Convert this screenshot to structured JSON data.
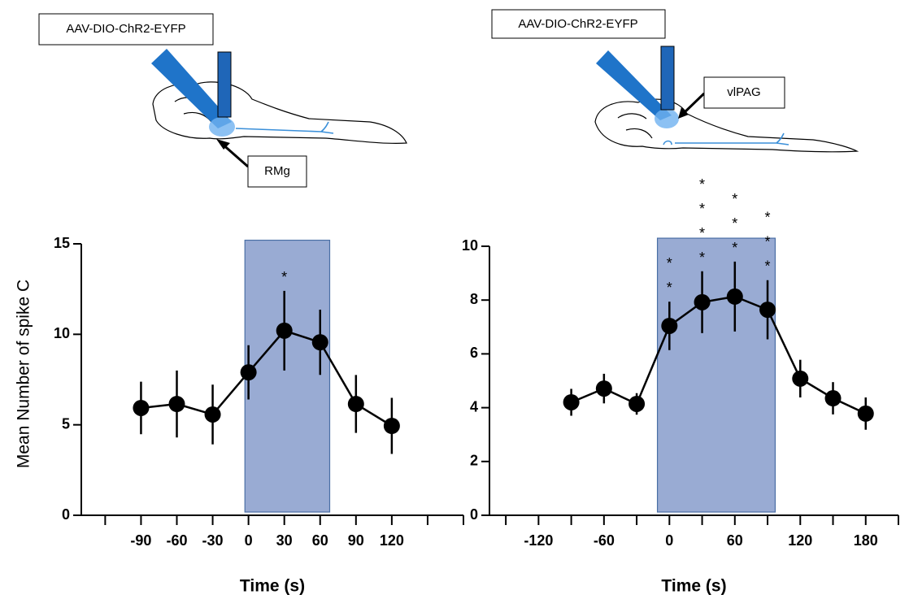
{
  "schematics": [
    {
      "virus": "AAV-DIO-ChR2-EYFP",
      "target": "RMg"
    },
    {
      "virus": "AAV-DIO-ChR2-EYFP",
      "target": "vlPAG"
    }
  ],
  "chart_data": [
    {
      "type": "line",
      "ylabel": "Mean Number of spike C",
      "xlabel": "Time (s)",
      "x": [
        -90,
        -60,
        -30,
        0,
        30,
        60,
        90,
        120
      ],
      "series": [
        {
          "color": "#000000",
          "values": [
            5.93,
            6.15,
            5.57,
            7.9,
            10.2,
            9.56,
            6.15,
            4.94
          ],
          "errors": [
            1.45,
            1.85,
            1.65,
            1.5,
            2.2,
            1.8,
            1.6,
            1.55
          ]
        }
      ],
      "xlim": [
        -140,
        180
      ],
      "ylim": [
        0,
        15
      ],
      "xticks": [
        {
          "value": -120,
          "label": null
        },
        -90,
        -60,
        -30,
        0,
        30,
        60,
        90,
        120,
        {
          "value": 150,
          "label": null
        },
        {
          "value": 180,
          "label": null
        }
      ],
      "yticks": [
        0,
        5,
        10,
        15
      ],
      "highlight": {
        "x": [
          -3,
          68
        ],
        "y": [
          0,
          15.2
        ],
        "color": "#8096c8"
      },
      "annotations": [
        {
          "text": "*",
          "x": 30
        }
      ]
    },
    {
      "type": "line",
      "xlabel": "Time (s)",
      "x": [
        -90,
        -60,
        -30,
        0,
        30,
        60,
        90,
        120,
        150,
        180
      ],
      "series": [
        {
          "color": "#000000",
          "values": [
            4.2,
            4.71,
            4.14,
            7.04,
            7.92,
            8.13,
            7.64,
            5.08,
            4.35,
            3.78
          ],
          "errors": [
            0.5,
            0.55,
            0.4,
            0.9,
            1.15,
            1.3,
            1.1,
            0.7,
            0.6,
            0.6
          ]
        }
      ],
      "xlim": [
        -165,
        210
      ],
      "ylim": [
        0,
        10
      ],
      "xticks": [
        {
          "value": -150,
          "label": null
        },
        -120,
        {
          "value": -90,
          "label": null
        },
        -60,
        {
          "value": -30,
          "label": null
        },
        0,
        {
          "value": 30,
          "label": null
        },
        60,
        {
          "value": 90,
          "label": null
        },
        120,
        {
          "value": 150,
          "label": null
        },
        180,
        {
          "value": 210,
          "label": null
        }
      ],
      "yticks": [
        0,
        2,
        4,
        6,
        8,
        10
      ],
      "highlight": {
        "x": [
          -11,
          97
        ],
        "y": [
          0,
          10.3
        ],
        "color": "#8096c8"
      },
      "annotations": [
        {
          "text": "**",
          "x": 0
        },
        {
          "text": "****",
          "x": 30
        },
        {
          "text": "***",
          "x": 60
        },
        {
          "text": "***",
          "x": 90
        }
      ]
    }
  ]
}
